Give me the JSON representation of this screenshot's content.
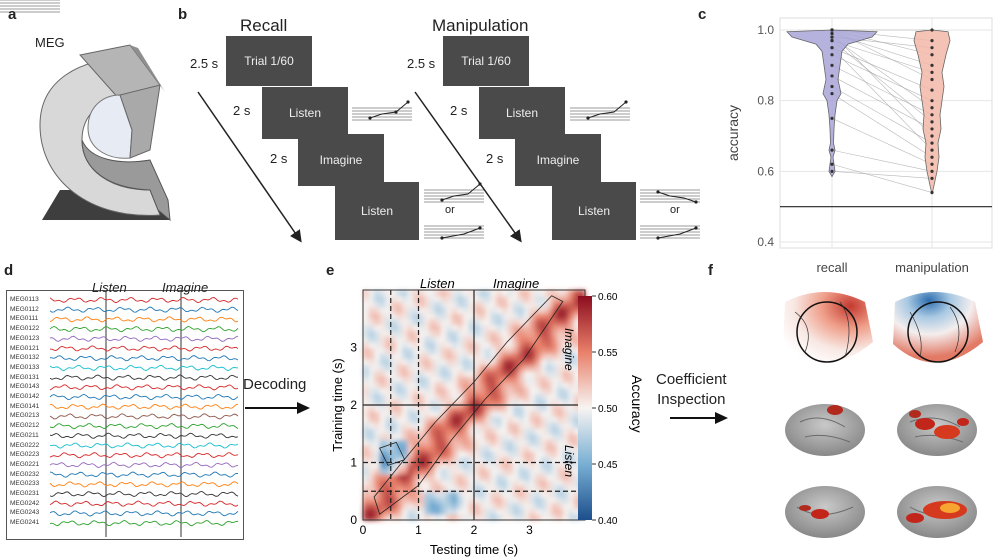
{
  "panels": {
    "a": "a",
    "b": "b",
    "c": "c",
    "d": "d",
    "e": "e",
    "f": "f"
  },
  "a": {
    "title": "MEG"
  },
  "b": {
    "recall": {
      "title": "Recall",
      "trial": "Trial 1/60",
      "listen": "Listen",
      "imagine": "Imagine",
      "listen2": "Listen",
      "t1": "2.5 s",
      "t2": "2 s",
      "t3": "2 s",
      "or": "or"
    },
    "manipulation": {
      "title": "Manipulation",
      "trial": "Trial 1/60",
      "listen": "Listen",
      "imagine": "Imagine",
      "listen2": "Listen",
      "t1": "2.5 s",
      "t2": "2 s",
      "t3": "2 s",
      "or": "or"
    }
  },
  "c": {
    "chart_data": {
      "type": "violin",
      "categories": [
        "recall",
        "manipulation"
      ],
      "ylabel": "accuracy",
      "ylim": [
        0.4,
        1.0
      ],
      "yticks": [
        "0.4",
        "0.6",
        "0.8",
        "1.0"
      ],
      "chance_line": 0.5,
      "colors": {
        "recall": "#a8a6d8",
        "manipulation": "#f3b9a8"
      },
      "pairs": [
        [
          1.0,
          1.0
        ],
        [
          1.0,
          0.97
        ],
        [
          0.98,
          0.95
        ],
        [
          1.0,
          0.93
        ],
        [
          0.99,
          0.9
        ],
        [
          0.97,
          0.88
        ],
        [
          1.0,
          0.86
        ],
        [
          0.95,
          0.83
        ],
        [
          0.93,
          0.8
        ],
        [
          0.98,
          0.78
        ],
        [
          0.9,
          0.76
        ],
        [
          0.97,
          0.74
        ],
        [
          0.87,
          0.72
        ],
        [
          0.99,
          0.7
        ],
        [
          0.84,
          0.68
        ],
        [
          0.95,
          0.66
        ],
        [
          0.82,
          0.64
        ],
        [
          0.75,
          0.62
        ],
        [
          0.66,
          0.6
        ],
        [
          0.62,
          0.54
        ],
        [
          0.6,
          0.58
        ]
      ]
    }
  },
  "d": {
    "labels": {
      "listen": "Listen",
      "imagine": "Imagine"
    },
    "channels": [
      "MEG0113",
      "MEG0112",
      "MEG0111",
      "MEG0122",
      "MEG0123",
      "MEG0121",
      "MEG0132",
      "MEG0133",
      "MEG0131",
      "MEG0143",
      "MEG0142",
      "MEG0141",
      "MEG0213",
      "MEG0212",
      "MEG0211",
      "MEG0222",
      "MEG0223",
      "MEG0221",
      "MEG0232",
      "MEG0233",
      "MEG0231",
      "MEG0242",
      "MEG0243",
      "MEG0241"
    ],
    "trace_colors": [
      "#d62728",
      "#1f77b4",
      "#ff7f0e",
      "#2ca02c",
      "#9467bd",
      "#d62728",
      "#1f77b4",
      "#17becf",
      "#333333",
      "#d62728",
      "#1f77b4",
      "#ff7f0e",
      "#8c564b",
      "#2ca02c",
      "#333333",
      "#17becf",
      "#d62728",
      "#9467bd",
      "#1f77b4",
      "#ff7f0e",
      "#333333",
      "#d62728",
      "#1f77b4",
      "#2ca02c"
    ]
  },
  "arrows": {
    "decoding": "Decoding",
    "coef1": "Coefficient",
    "coef2": "Inspection"
  },
  "e": {
    "chart_data": {
      "type": "heatmap",
      "title_listen": "Listen",
      "title_imagine": "Imagine",
      "xlabel": "Testing time (s)",
      "ylabel": "Training time (s)",
      "xticks": [
        "0",
        "1",
        "2",
        "3"
      ],
      "yticks": [
        "0",
        "1",
        "2",
        "3"
      ],
      "side_imagine": "Imagine",
      "side_listen": "Listen",
      "colorbar": {
        "label": "Accuracy",
        "ticks": [
          "0.60",
          "0.55",
          "0.50",
          "0.45",
          "0.40"
        ],
        "range": [
          0.4,
          0.6
        ]
      }
    }
  }
}
